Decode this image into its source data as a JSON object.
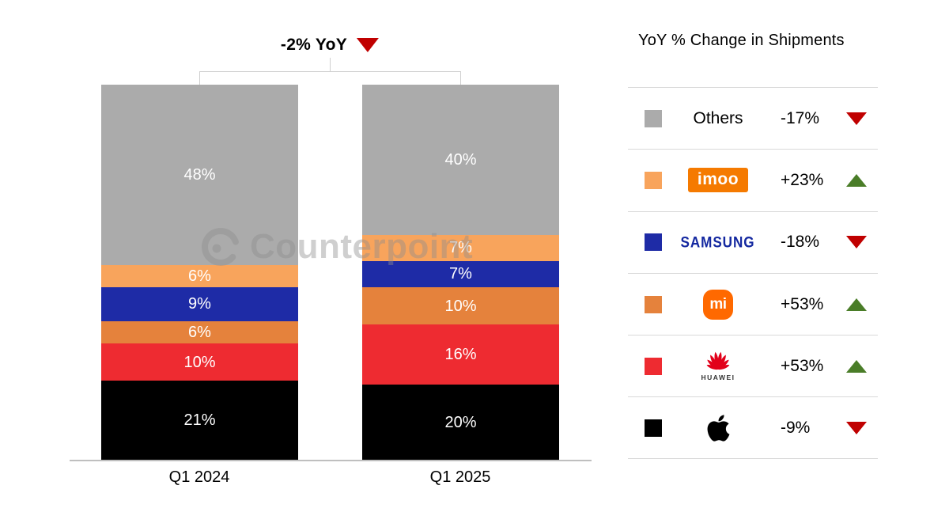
{
  "title": {
    "label": "-2% YoY",
    "arrow": "down",
    "arrow_color": "#c00000"
  },
  "watermark": {
    "text": "Counterpoint"
  },
  "chart_data": {
    "type": "stacked-bar",
    "title": "-2% YoY",
    "subtitle_note": "100% stacked market share by brand",
    "categories": [
      "Q1 2024",
      "Q1 2025"
    ],
    "value_suffix": "%",
    "ylim": [
      0,
      100
    ],
    "grid": false,
    "legend_position": "right",
    "series": [
      {
        "name": "Others",
        "color": "#ababab",
        "values": [
          48,
          40
        ]
      },
      {
        "name": "imoo",
        "color": "#f8a45c",
        "values": [
          6,
          7
        ]
      },
      {
        "name": "Samsung",
        "color": "#1e2ba6",
        "values": [
          9,
          7
        ]
      },
      {
        "name": "Xiaomi",
        "color": "#e5823c",
        "values": [
          6,
          10
        ]
      },
      {
        "name": "Huawei",
        "color": "#ee2b31",
        "values": [
          10,
          16
        ]
      },
      {
        "name": "Apple",
        "color": "#000000",
        "values": [
          21,
          20
        ]
      }
    ]
  },
  "legend": {
    "header": "YoY % Change in Shipments",
    "rows": [
      {
        "brand": "Others",
        "change": "-17%",
        "dir": "down",
        "swatch": "#ababab",
        "arrow_color": "#c00000"
      },
      {
        "brand": "imoo",
        "change": "+23%",
        "dir": "up",
        "swatch": "#f8a45c",
        "arrow_color": "#4a7d28",
        "logo_text": "imoo",
        "logo_bg": "#f57a00"
      },
      {
        "brand": "Samsung",
        "change": "-18%",
        "dir": "down",
        "swatch": "#1e2ba6",
        "arrow_color": "#c00000",
        "logo_text": "SAMSUNG",
        "logo_color": "#1428a0"
      },
      {
        "brand": "Xiaomi",
        "change": "+53%",
        "dir": "up",
        "swatch": "#e5823c",
        "arrow_color": "#4a7d28",
        "logo_text": "mi",
        "logo_bg": "#ff6900"
      },
      {
        "brand": "Huawei",
        "change": "+53%",
        "dir": "up",
        "swatch": "#ee2b31",
        "arrow_color": "#4a7d28",
        "logo_text": "HUAWEI",
        "logo_color": "#e2001a"
      },
      {
        "brand": "Apple",
        "change": "-9%",
        "dir": "down",
        "swatch": "#000000",
        "arrow_color": "#c00000",
        "logo_color": "#000000"
      }
    ]
  }
}
